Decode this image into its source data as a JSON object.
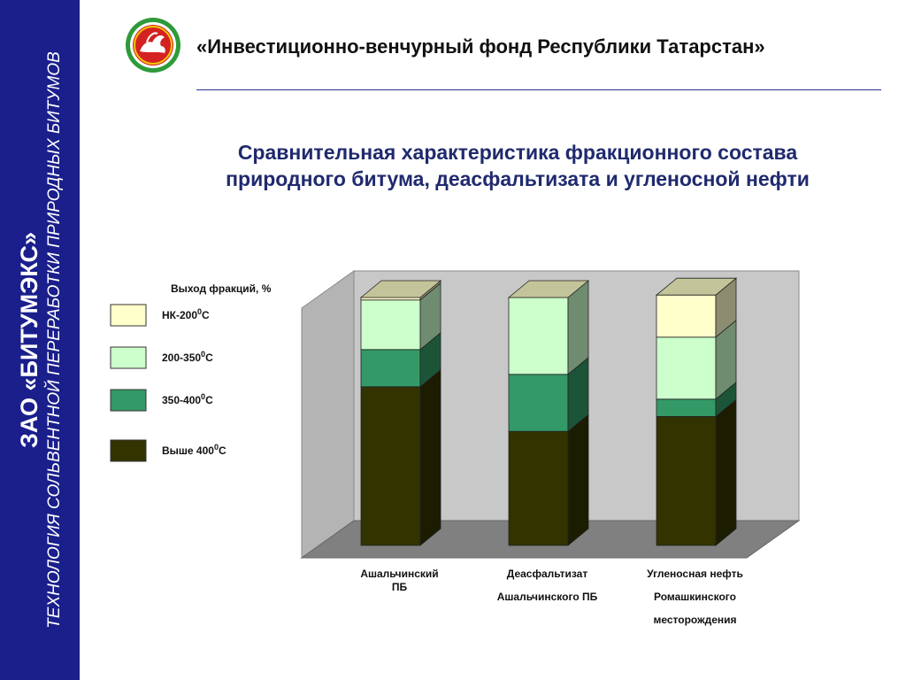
{
  "sidebar": {
    "company": "ЗАО «БИТУМЭКС»",
    "tagline": "ТЕХНОЛОГИЯ СОЛЬВЕНТНОЙ ПЕРЕРАБОТКИ ПРИРОДНЫХ БИТУМОВ"
  },
  "header": {
    "title": "«Инвестиционно-венчурный фонд Республики Татарстан»"
  },
  "slide": {
    "title_line1": "Сравнительная характеристика фракционного состава",
    "title_line2": "природного  битума, деасфальтизата и угленосной нефти"
  },
  "colors": {
    "sidebar": "#1a1f8c",
    "wall": "#c8c8c8",
    "floor": "#808080",
    "nk200": "#ffffcc",
    "r200_350": "#ccffcc",
    "r350_400": "#339966",
    "above400": "#333300"
  },
  "chart_data": {
    "type": "bar",
    "stacked": true,
    "ylabel": "Выход фракций, %",
    "categories": [
      [
        "Ашальчинский",
        "ПБ"
      ],
      [
        "Деасфальтизат",
        "Ашальчинского ПБ"
      ],
      [
        "Угленосная нефть",
        "Ромашкинского",
        "месторождения"
      ]
    ],
    "series": [
      {
        "name": "Выше 400",
        "sup": "0",
        "unit": "С",
        "color": "#333300",
        "values": [
          64,
          46,
          52
        ]
      },
      {
        "name": "350-400",
        "sup": "0",
        "unit": "С",
        "color": "#339966",
        "values": [
          15,
          23,
          7
        ]
      },
      {
        "name": "200-350",
        "sup": "0",
        "unit": "С",
        "color": "#ccffcc",
        "values": [
          20,
          31,
          25
        ]
      },
      {
        "name": "НК-200",
        "sup": "0",
        "unit": "С",
        "color": "#ffffcc",
        "values": [
          1,
          0,
          17
        ]
      }
    ],
    "ylim": [
      0,
      100
    ],
    "legend_position": "left"
  }
}
